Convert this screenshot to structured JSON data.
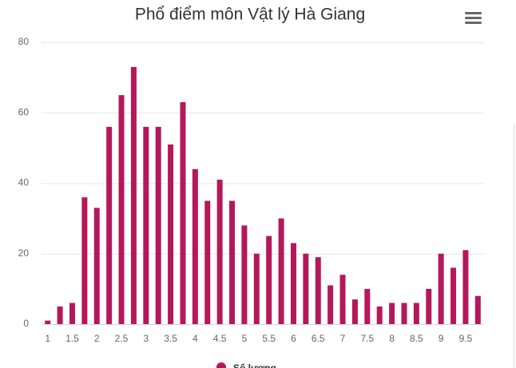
{
  "chart_data": {
    "type": "bar",
    "title": "Phổ điểm môn Vật lý Hà Giang",
    "categories": [
      "1",
      null,
      "1.5",
      null,
      "2",
      null,
      "2.5",
      null,
      "3",
      null,
      "3.5",
      null,
      "4",
      null,
      "4.5",
      null,
      "5",
      null,
      "5.5",
      null,
      "6",
      null,
      "6.5",
      null,
      "7",
      null,
      "7.5",
      null,
      "8",
      null,
      "8.5",
      null,
      "9",
      null,
      "9.5",
      null
    ],
    "series": [
      {
        "name": "Số lượng",
        "color": "#b5185a",
        "values": [
          1,
          5,
          6,
          36,
          33,
          56,
          65,
          73,
          56,
          56,
          51,
          63,
          44,
          35,
          41,
          35,
          28,
          20,
          25,
          30,
          23,
          20,
          19,
          11,
          14,
          7,
          10,
          5,
          6,
          6,
          6,
          10,
          20,
          16,
          21,
          8
        ]
      }
    ],
    "ylim": [
      0,
      80
    ],
    "yticks": [
      0,
      20,
      40,
      60,
      80
    ],
    "grid": true
  }
}
